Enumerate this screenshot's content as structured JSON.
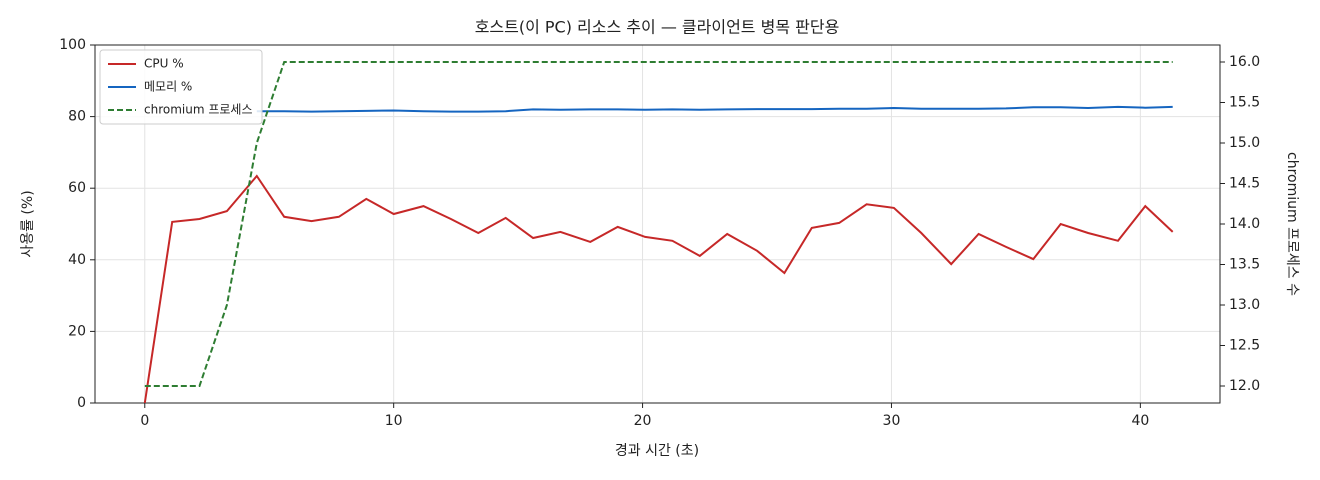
{
  "chart_data": {
    "type": "line",
    "title": "호스트(이 PC) 리소스 추이 — 클라이언트 병목 판단용",
    "x_label": "경과 시간 (초)",
    "y_label": "사용률 (%)",
    "y2_label": "chromium 프로세스 수",
    "x": [
      0,
      1.1,
      2.2,
      3.3,
      4.5,
      5.6,
      6.7,
      7.8,
      8.9,
      10.0,
      11.2,
      12.3,
      13.4,
      14.5,
      15.6,
      16.7,
      17.9,
      19.0,
      20.1,
      21.2,
      22.3,
      23.4,
      24.6,
      25.7,
      26.8,
      27.9,
      29.0,
      30.1,
      31.2,
      32.4,
      33.5,
      34.6,
      35.7,
      36.8,
      37.9,
      39.1,
      40.2,
      41.3
    ],
    "series": [
      {
        "name": "CPU %",
        "color": "#c62828",
        "dash": false,
        "values": [
          0,
          50.6,
          51.4,
          53.6,
          63.4,
          52,
          50.8,
          52,
          57,
          52.8,
          55,
          51.4,
          47.5,
          51.7,
          46.1,
          47.8,
          45,
          49.2,
          46.4,
          45.3,
          41.1,
          47.2,
          42.5,
          36.3,
          48.9,
          50.3,
          55.5,
          54.5,
          47.5,
          38.8,
          47.2,
          43.6,
          40.2,
          50,
          47.5,
          45.3,
          55,
          47.8
        ]
      },
      {
        "name": "메모리 %",
        "color": "#1565c0",
        "dash": false,
        "values": [
          null,
          null,
          null,
          null,
          81.5,
          81.5,
          81.4,
          81.5,
          81.6,
          81.7,
          81.5,
          81.4,
          81.4,
          81.5,
          82.0,
          81.9,
          82.0,
          82.0,
          81.9,
          82.0,
          81.9,
          82.0,
          82.1,
          82.1,
          82.1,
          82.2,
          82.2,
          82.4,
          82.2,
          82.2,
          82.2,
          82.3,
          82.6,
          82.6,
          82.4,
          82.7,
          82.5,
          82.7
        ]
      },
      {
        "name": "chromium 프로세스",
        "color": "#2e7d32",
        "dash": true,
        "axis": "y2",
        "values": [
          12,
          12,
          12,
          13,
          15,
          16,
          16,
          16,
          16,
          16,
          16,
          16,
          16,
          16,
          16,
          16,
          16,
          16,
          16,
          16,
          16,
          16,
          16,
          16,
          16,
          16,
          16,
          16,
          16,
          16,
          16,
          16,
          16,
          16,
          16,
          16,
          16,
          16
        ]
      }
    ],
    "xlim": [
      -2,
      43.2
    ],
    "xticks": [
      0,
      10,
      20,
      30,
      40
    ],
    "ylim": [
      0,
      100
    ],
    "yticks": [
      0,
      20,
      40,
      60,
      80,
      100
    ],
    "y2lim": [
      11.79,
      16.21
    ],
    "y2ticks": [
      {
        "value": 12,
        "label": "12.0"
      },
      {
        "value": 12.5,
        "label": "12.5"
      },
      {
        "value": 13,
        "label": "13.0"
      },
      {
        "value": 13.5,
        "label": "13.5"
      },
      {
        "value": 14,
        "label": "14.0"
      },
      {
        "value": 14.5,
        "label": "14.5"
      },
      {
        "value": 15,
        "label": "15.0"
      },
      {
        "value": 15.5,
        "label": "15.5"
      },
      {
        "value": 16,
        "label": "16.0"
      }
    ],
    "grid": true,
    "legend": "upper-left"
  }
}
